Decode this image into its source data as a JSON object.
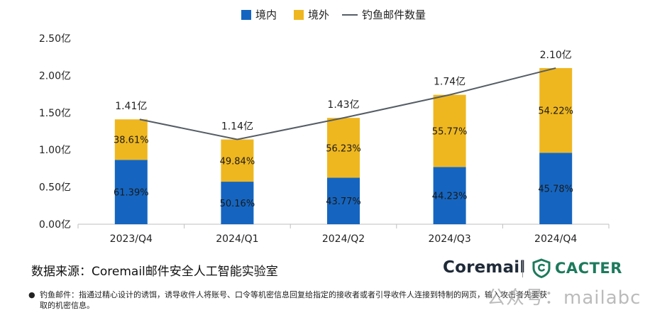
{
  "chart_data": {
    "type": "bar",
    "stacked": true,
    "categories": [
      "2023/Q4",
      "2024/Q1",
      "2024/Q2",
      "2024/Q3",
      "2024/Q4"
    ],
    "series": [
      {
        "name": "境内",
        "values": [
          0.866,
          0.572,
          0.626,
          0.77,
          0.961
        ],
        "pct_labels": [
          "61.39%",
          "50.16%",
          "43.77%",
          "44.23%",
          "45.78%"
        ],
        "color": "#1565c0"
      },
      {
        "name": "境外",
        "values": [
          0.544,
          0.568,
          0.804,
          0.97,
          1.139
        ],
        "pct_labels": [
          "38.61%",
          "49.84%",
          "56.23%",
          "55.77%",
          "54.22%"
        ],
        "color": "#efb71f"
      }
    ],
    "line": {
      "name": "钓鱼邮件数量",
      "values": [
        1.41,
        1.14,
        1.43,
        1.74,
        2.1
      ],
      "labels": [
        "1.41亿",
        "1.14亿",
        "1.43亿",
        "1.74亿",
        "2.10亿"
      ],
      "color": "#555d66"
    },
    "yticks": [
      "0.00亿",
      "0.50亿",
      "1.00亿",
      "1.50亿",
      "2.00亿",
      "2.50亿"
    ],
    "ylim": [
      0,
      2.5
    ],
    "legend": "top-center",
    "grid": false
  },
  "source": "数据来源：Coremail邮件安全人工智能实验室",
  "logos": {
    "coremail": "Coremail",
    "cacter": "CACTER"
  },
  "footnote": {
    "bullet": "●",
    "text": "钓鱼邮件：指通过精心设计的诱饵，诱导收件人将账号、口令等机密信息回复给指定的接收者或者引导收件人连接到特制的网页，输入攻击者先要获取的机密信息。"
  },
  "watermark": "公众号：mailabc"
}
